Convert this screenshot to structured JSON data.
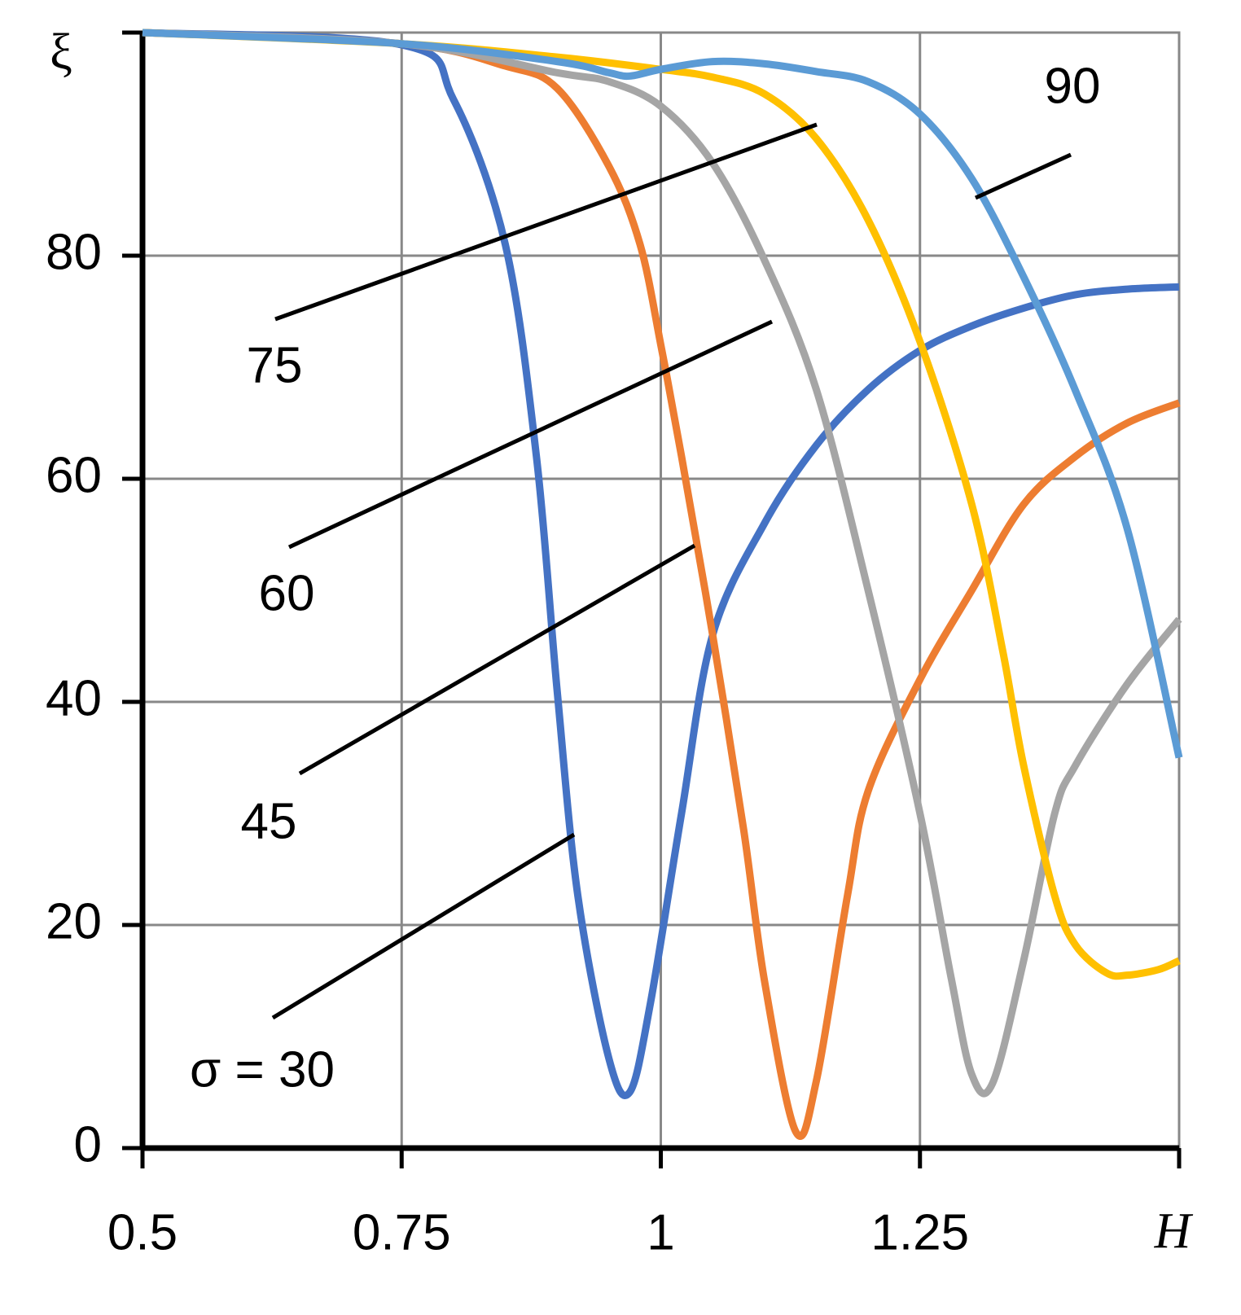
{
  "chart_data": {
    "type": "line",
    "x_label": "H",
    "y_label": "ξ",
    "xlim": [
      0.5,
      1.5
    ],
    "xticks": [
      0.5,
      0.75,
      1,
      1.25
    ],
    "ylim": [
      0,
      100
    ],
    "yticks": [
      0,
      20,
      40,
      60,
      80
    ],
    "grid": true,
    "series": [
      {
        "name": "σ = 30",
        "color": "#4472c4",
        "x": [
          0.5,
          0.75,
          0.8,
          0.85,
          0.88,
          0.9,
          0.92,
          0.95,
          0.97,
          0.99,
          1.02,
          1.05,
          1.1,
          1.15,
          1.2,
          1.25,
          1.3,
          1.35,
          1.4,
          1.45,
          1.5
        ],
        "values": [
          100,
          98.9,
          94,
          81,
          62,
          41,
          22.6,
          8,
          5,
          13,
          30,
          46,
          56,
          63,
          68,
          71.5,
          73.7,
          75.3,
          76.5,
          77,
          77.2
        ]
      },
      {
        "name": "45",
        "color": "#ed7d31",
        "x": [
          0.5,
          0.75,
          0.85,
          0.9,
          0.95,
          0.98,
          1.0,
          1.02,
          1.05,
          1.08,
          1.1,
          1.13,
          1.15,
          1.18,
          1.2,
          1.25,
          1.3,
          1.35,
          1.4,
          1.45,
          1.5
        ],
        "values": [
          100,
          99,
          97,
          95,
          88,
          81,
          72,
          62,
          46,
          28.5,
          15,
          1.5,
          6,
          22.6,
          32,
          42,
          50,
          57.7,
          62,
          65,
          66.8
        ]
      },
      {
        "name": "60",
        "color": "#a5a5a5",
        "x": [
          0.5,
          0.75,
          0.9,
          0.95,
          1.0,
          1.05,
          1.1,
          1.15,
          1.2,
          1.25,
          1.28,
          1.3,
          1.32,
          1.35,
          1.38,
          1.4,
          1.45,
          1.5
        ],
        "values": [
          100,
          99,
          96.4,
          95.6,
          93.4,
          88.3,
          79.6,
          68,
          50,
          30,
          15.3,
          6.6,
          5.8,
          16.8,
          30,
          34.3,
          41.6,
          47.4
        ]
      },
      {
        "name": "75",
        "color": "#ffc000",
        "x": [
          0.5,
          0.75,
          0.9,
          1.0,
          1.05,
          1.1,
          1.15,
          1.2,
          1.25,
          1.3,
          1.33,
          1.35,
          1.38,
          1.4,
          1.43,
          1.45,
          1.48,
          1.5
        ],
        "values": [
          100,
          99,
          97.8,
          96.7,
          96,
          94.5,
          90.5,
          83.2,
          72.3,
          57.7,
          44.5,
          34.3,
          22.6,
          18.2,
          15.7,
          15.5,
          16,
          16.8
        ]
      },
      {
        "name": "90",
        "color": "#5b9bd5",
        "x": [
          0.5,
          0.75,
          0.9,
          0.95,
          0.97,
          1.0,
          1.05,
          1.1,
          1.15,
          1.2,
          1.25,
          1.3,
          1.35,
          1.4,
          1.45,
          1.5
        ],
        "values": [
          100,
          99,
          97.4,
          96.4,
          96.1,
          96.7,
          97.4,
          97.2,
          96.5,
          95.6,
          92.7,
          86.9,
          78.1,
          67.9,
          55.5,
          35
        ]
      }
    ]
  }
}
